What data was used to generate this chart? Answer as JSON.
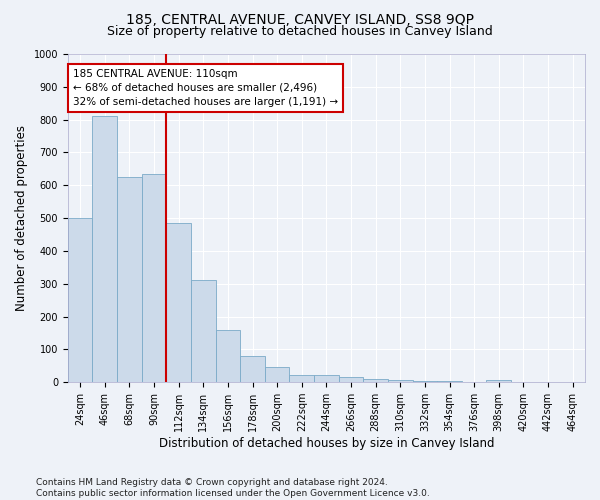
{
  "title": "185, CENTRAL AVENUE, CANVEY ISLAND, SS8 9QP",
  "subtitle": "Size of property relative to detached houses in Canvey Island",
  "xlabel": "Distribution of detached houses by size in Canvey Island",
  "ylabel": "Number of detached properties",
  "footer": "Contains HM Land Registry data © Crown copyright and database right 2024.\nContains public sector information licensed under the Open Government Licence v3.0.",
  "categories": [
    "24sqm",
    "46sqm",
    "68sqm",
    "90sqm",
    "112sqm",
    "134sqm",
    "156sqm",
    "178sqm",
    "200sqm",
    "222sqm",
    "244sqm",
    "266sqm",
    "288sqm",
    "310sqm",
    "332sqm",
    "354sqm",
    "376sqm",
    "398sqm",
    "420sqm",
    "442sqm",
    "464sqm"
  ],
  "values": [
    500,
    810,
    625,
    635,
    485,
    310,
    160,
    80,
    45,
    22,
    22,
    15,
    10,
    8,
    5,
    3,
    2,
    8,
    1,
    1,
    0
  ],
  "bar_color": "#ccdaea",
  "bar_edge_color": "#7aaac8",
  "vline_index": 4,
  "vline_color": "#cc0000",
  "annotation_text": "185 CENTRAL AVENUE: 110sqm\n← 68% of detached houses are smaller (2,496)\n32% of semi-detached houses are larger (1,191) →",
  "annotation_box_color": "white",
  "annotation_box_edge_color": "#cc0000",
  "ylim": [
    0,
    1000
  ],
  "yticks": [
    0,
    100,
    200,
    300,
    400,
    500,
    600,
    700,
    800,
    900,
    1000
  ],
  "background_color": "#eef2f8",
  "grid_color": "#ffffff",
  "title_fontsize": 10,
  "subtitle_fontsize": 9,
  "axis_label_fontsize": 8.5,
  "tick_fontsize": 7,
  "annotation_fontsize": 7.5,
  "footer_fontsize": 6.5
}
